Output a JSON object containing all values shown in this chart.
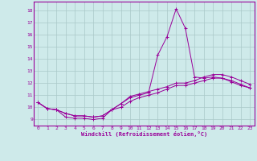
{
  "xlabel": "Windchill (Refroidissement éolien,°C)",
  "ylabel": "",
  "xlim": [
    -0.5,
    23.5
  ],
  "ylim": [
    8.5,
    18.7
  ],
  "yticks": [
    9,
    10,
    11,
    12,
    13,
    14,
    15,
    16,
    17,
    18
  ],
  "xticks": [
    0,
    1,
    2,
    3,
    4,
    5,
    6,
    7,
    8,
    9,
    10,
    11,
    12,
    13,
    14,
    15,
    16,
    17,
    18,
    19,
    20,
    21,
    22,
    23
  ],
  "bg_color": "#ceeaea",
  "line_color": "#990099",
  "grid_color": "#aac8c8",
  "line1_x": [
    0,
    1,
    2,
    3,
    4,
    5,
    6,
    7,
    8,
    9,
    10,
    11,
    12,
    13,
    14,
    15,
    16,
    17,
    18,
    19,
    20,
    21,
    22,
    23
  ],
  "line1_y": [
    10.4,
    9.9,
    9.8,
    9.2,
    9.1,
    9.1,
    9.0,
    9.1,
    9.8,
    10.3,
    10.8,
    11.0,
    11.2,
    14.3,
    15.8,
    18.1,
    16.5,
    12.5,
    12.4,
    12.5,
    12.4,
    12.1,
    11.8,
    11.6
  ],
  "line2_x": [
    0,
    1,
    2,
    3,
    4,
    5,
    6,
    7,
    8,
    9,
    10,
    11,
    12,
    13,
    14,
    15,
    16,
    17,
    18,
    19,
    20,
    21,
    22,
    23
  ],
  "line2_y": [
    10.4,
    9.9,
    9.8,
    9.5,
    9.3,
    9.3,
    9.2,
    9.3,
    9.8,
    10.0,
    10.5,
    10.8,
    11.0,
    11.2,
    11.5,
    11.8,
    11.8,
    12.0,
    12.2,
    12.4,
    12.4,
    12.2,
    11.9,
    11.6
  ],
  "line3_x": [
    0,
    1,
    2,
    3,
    4,
    5,
    6,
    7,
    8,
    9,
    10,
    11,
    12,
    13,
    14,
    15,
    16,
    17,
    18,
    19,
    20,
    21,
    22,
    23
  ],
  "line3_y": [
    10.4,
    9.9,
    9.8,
    9.5,
    9.3,
    9.3,
    9.2,
    9.3,
    9.8,
    10.3,
    10.9,
    11.1,
    11.3,
    11.5,
    11.7,
    12.0,
    12.0,
    12.2,
    12.5,
    12.7,
    12.7,
    12.5,
    12.2,
    11.9
  ]
}
